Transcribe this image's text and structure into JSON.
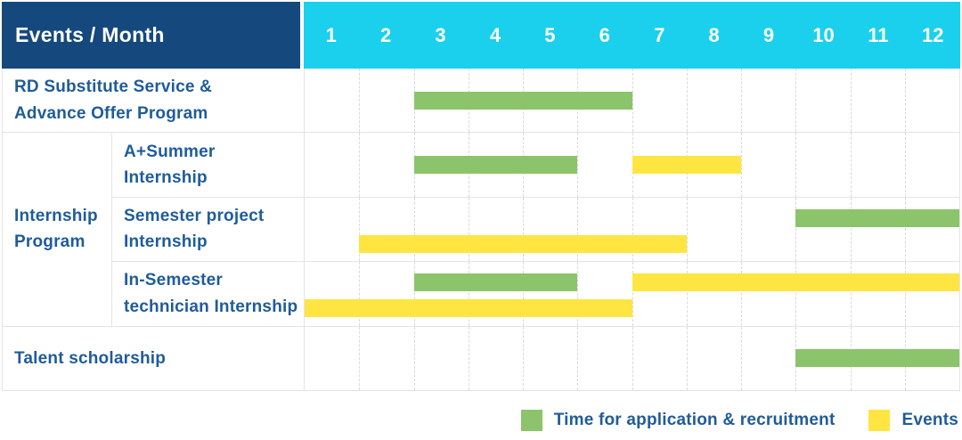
{
  "header": {
    "title": "Events / Month",
    "months": [
      "1",
      "2",
      "3",
      "4",
      "5",
      "6",
      "7",
      "8",
      "9",
      "10",
      "11",
      "12"
    ]
  },
  "colors": {
    "header_bg": "#15497d",
    "months_bg": "#1bd0ec",
    "label_text": "#1f5c99",
    "green": "#8bc46a",
    "yellow": "#ffe542",
    "border": "#e4e4e7",
    "gridline": "#d9d9dc"
  },
  "chart_data": {
    "type": "gantt",
    "title": "Events / Month",
    "x_axis": {
      "label": "Month",
      "range": [
        1,
        12
      ],
      "ticks": [
        "1",
        "2",
        "3",
        "4",
        "5",
        "6",
        "7",
        "8",
        "9",
        "10",
        "11",
        "12"
      ]
    },
    "rows": [
      {
        "group": "",
        "label": "RD Substitute Service &\nAdvance Offer Program",
        "bars": [
          {
            "type": "application",
            "start": 3,
            "end": 6,
            "lane": "single"
          }
        ]
      },
      {
        "group": "Internship\nProgram",
        "label": "A+Summer\nInternship",
        "bars": [
          {
            "type": "application",
            "start": 3,
            "end": 5,
            "lane": "single"
          },
          {
            "type": "event",
            "start": 7,
            "end": 8,
            "lane": "single"
          }
        ]
      },
      {
        "group": "Internship\nProgram",
        "label": "Semester project\nInternship",
        "bars": [
          {
            "type": "application",
            "start": 10,
            "end": 12,
            "lane": "top"
          },
          {
            "type": "event",
            "start": 2,
            "end": 7,
            "lane": "bottom"
          }
        ]
      },
      {
        "group": "Internship\nProgram",
        "label": "In-Semester\ntechnician Internship",
        "bars": [
          {
            "type": "application",
            "start": 3,
            "end": 5,
            "lane": "top"
          },
          {
            "type": "event",
            "start": 7,
            "end": 12,
            "lane": "top"
          },
          {
            "type": "event",
            "start": 1,
            "end": 6,
            "lane": "bottom"
          }
        ]
      },
      {
        "group": "",
        "label": "Talent scholarship",
        "bars": [
          {
            "type": "application",
            "start": 10,
            "end": 12,
            "lane": "single"
          }
        ]
      }
    ],
    "legend": [
      {
        "key": "application",
        "color_key": "green",
        "label": "Time for application & recruitment"
      },
      {
        "key": "event",
        "color_key": "yellow",
        "label": "Events"
      }
    ]
  }
}
